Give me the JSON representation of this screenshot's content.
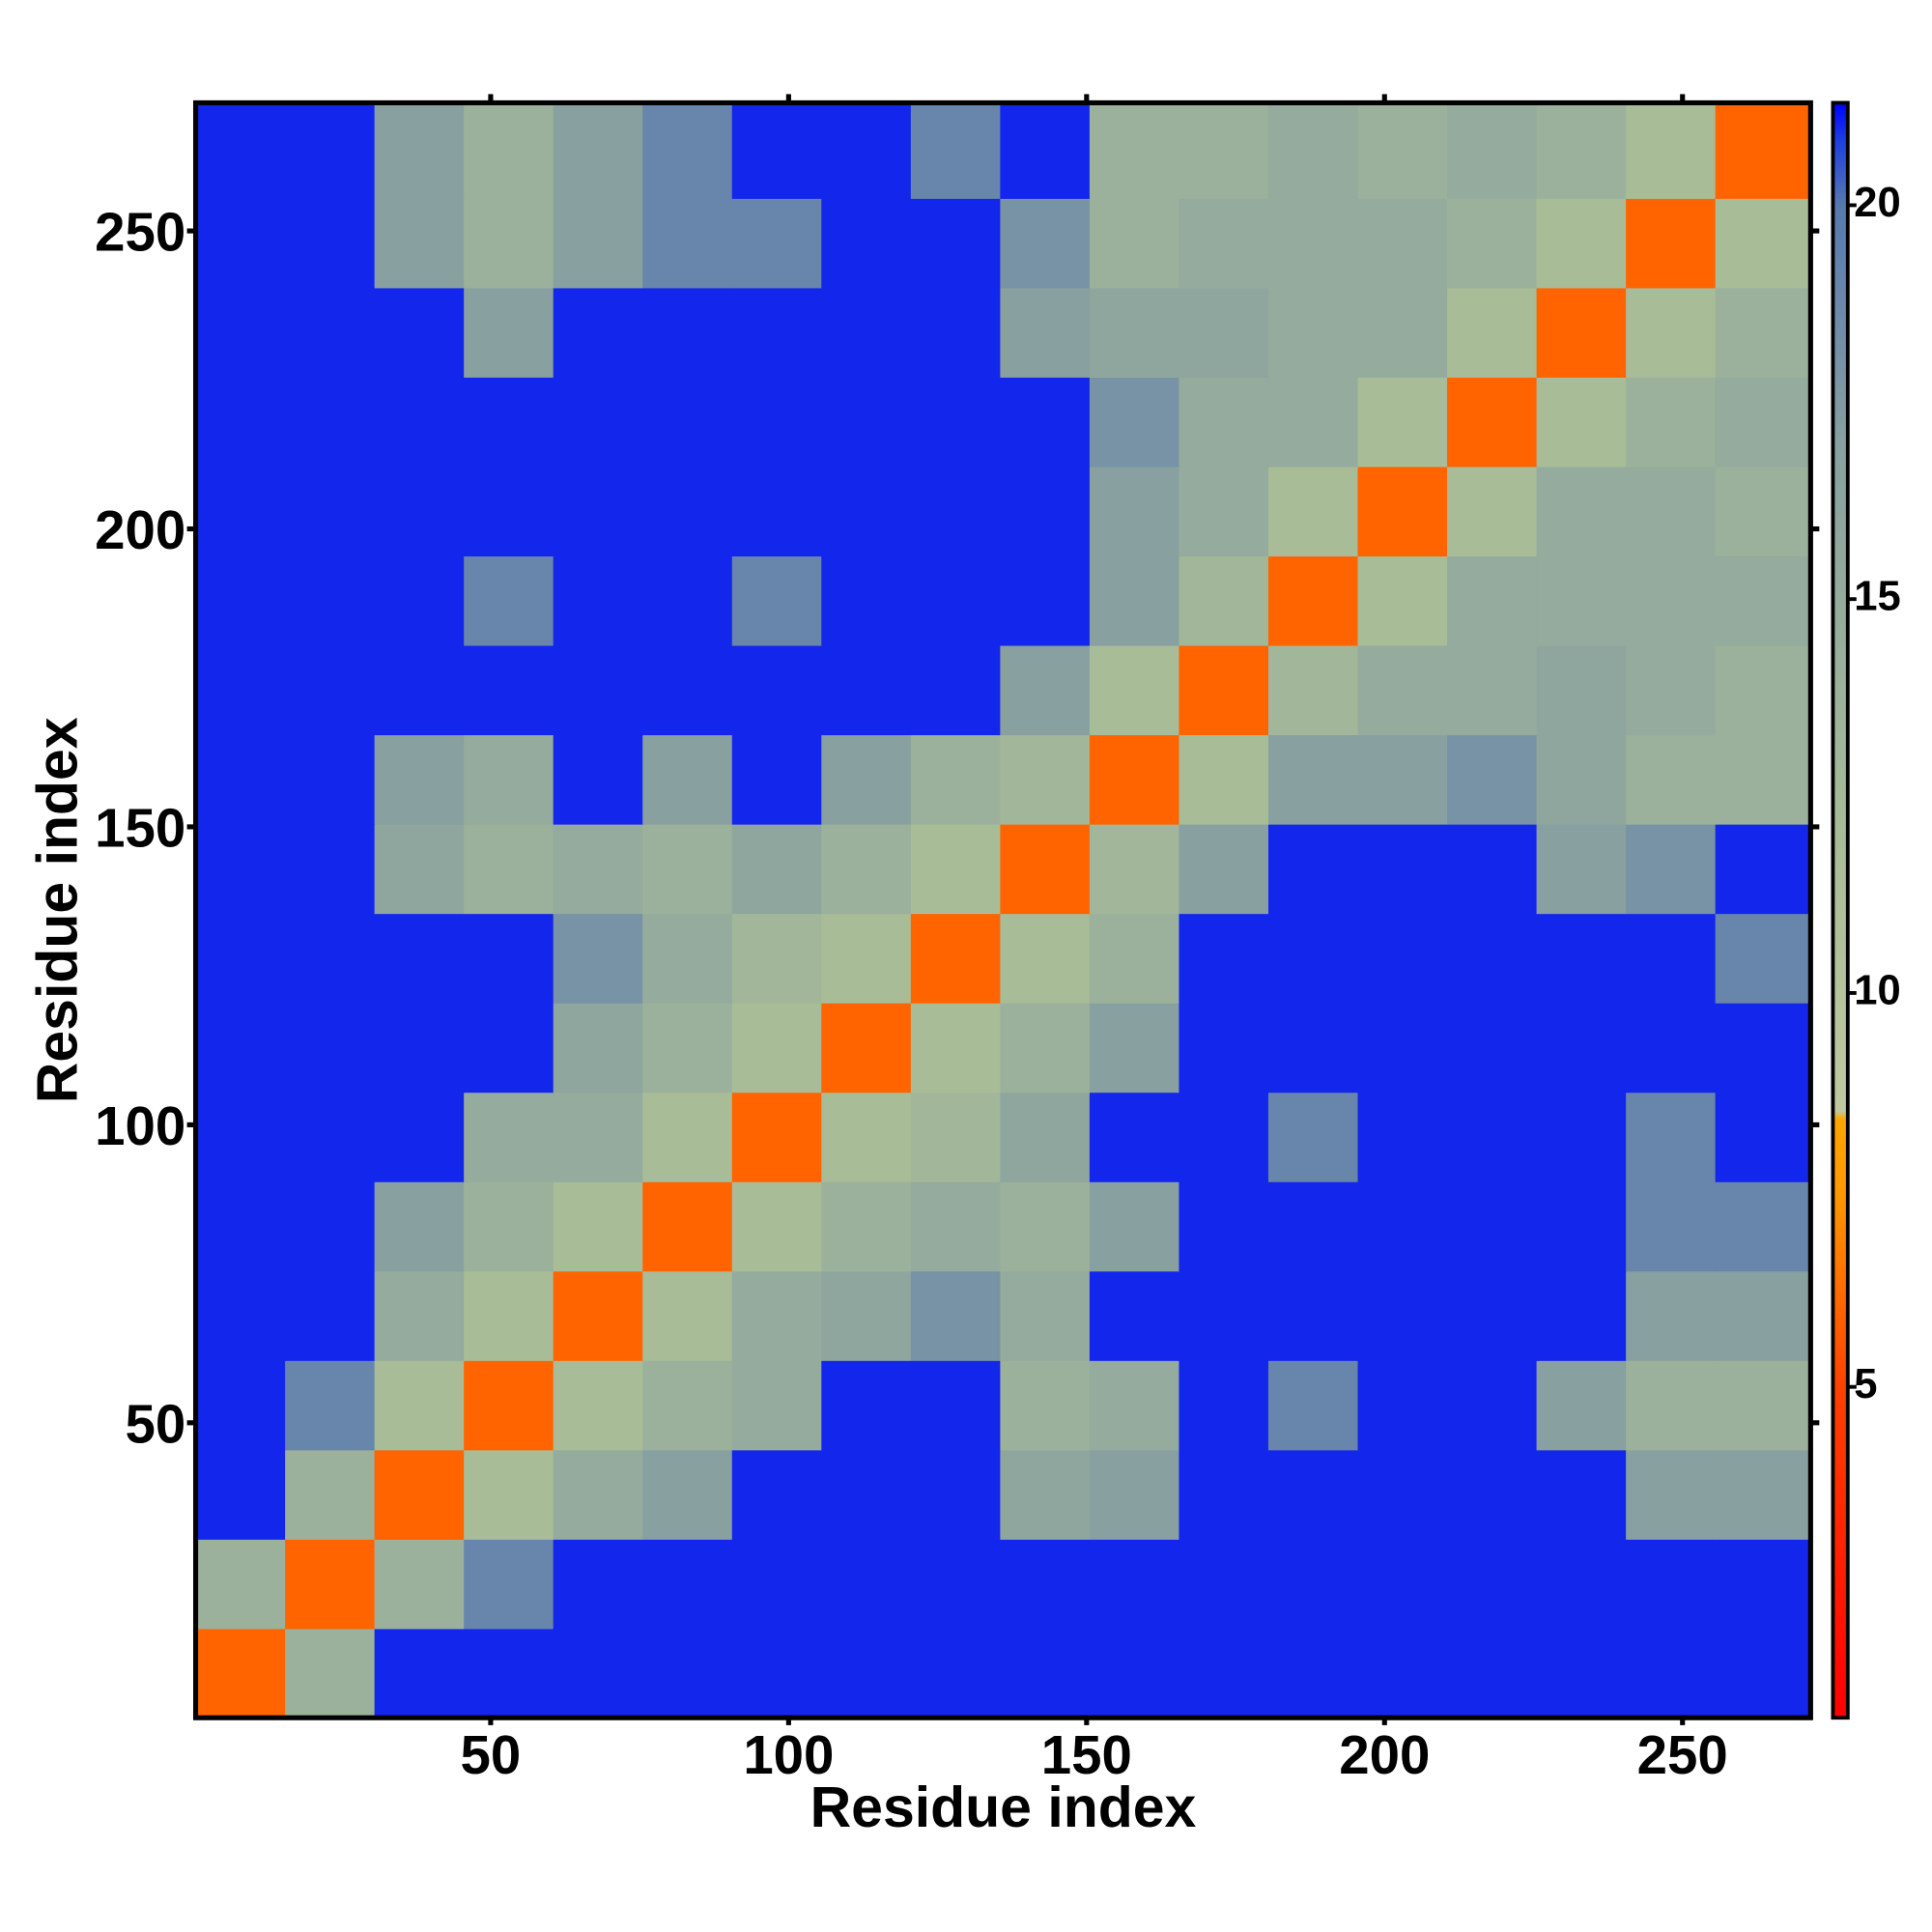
{
  "chart_data": {
    "type": "heatmap",
    "xlabel": "Residue index",
    "ylabel": "Residue index",
    "bins": [
      0.5,
      15.5,
      30.5,
      45.5,
      60.5,
      75.5,
      90.5,
      105.5,
      120.5,
      135.5,
      150.5,
      165.5,
      180.5,
      195.5,
      210.5,
      225.5,
      240.5,
      255.5,
      271.5
    ],
    "z": [
      [
        6,
        14,
        21,
        21,
        21,
        21,
        21,
        21,
        21,
        21,
        21,
        21,
        21,
        21,
        21,
        21,
        21,
        21
      ],
      [
        14,
        6,
        14,
        19,
        21,
        21,
        21,
        21,
        21,
        21,
        21,
        21,
        21,
        21,
        21,
        21,
        21,
        21
      ],
      [
        21,
        14,
        6,
        12,
        15,
        17,
        21,
        21,
        21,
        16,
        17,
        21,
        21,
        21,
        21,
        21,
        17,
        17
      ],
      [
        21,
        19,
        12,
        6,
        12,
        14,
        15,
        21,
        21,
        14,
        15,
        21,
        19,
        21,
        21,
        17,
        14,
        14
      ],
      [
        21,
        21,
        15,
        12,
        6,
        12,
        15,
        16,
        18,
        15,
        21,
        21,
        21,
        21,
        21,
        21,
        17,
        17
      ],
      [
        21,
        21,
        17,
        14,
        12,
        6,
        12,
        14,
        15,
        14,
        17,
        21,
        21,
        21,
        21,
        21,
        19,
        19
      ],
      [
        21,
        21,
        21,
        15,
        15,
        12,
        6,
        12,
        13,
        16,
        21,
        21,
        19,
        21,
        21,
        21,
        19,
        21
      ],
      [
        21,
        21,
        21,
        21,
        16,
        14,
        12,
        6,
        12,
        14,
        17,
        21,
        21,
        21,
        21,
        21,
        21,
        21
      ],
      [
        21,
        21,
        21,
        21,
        18,
        15,
        13,
        12,
        6,
        12,
        14,
        21,
        21,
        21,
        21,
        21,
        21,
        19
      ],
      [
        21,
        21,
        16,
        14,
        15,
        14,
        16,
        14,
        12,
        6,
        13,
        17,
        21,
        21,
        21,
        17,
        18,
        21
      ],
      [
        21,
        21,
        17,
        15,
        21,
        17,
        21,
        17,
        14,
        13,
        6,
        12,
        17,
        17,
        18,
        16,
        14,
        14
      ],
      [
        21,
        21,
        21,
        21,
        21,
        21,
        21,
        21,
        21,
        17,
        12,
        6,
        13,
        15,
        15,
        16,
        15,
        14
      ],
      [
        21,
        21,
        21,
        19,
        21,
        21,
        19,
        21,
        21,
        21,
        17,
        13,
        6,
        12,
        15,
        15,
        15,
        15
      ],
      [
        21,
        21,
        21,
        21,
        21,
        21,
        21,
        21,
        21,
        21,
        17,
        15,
        12,
        6,
        12,
        15,
        15,
        14
      ],
      [
        21,
        21,
        21,
        21,
        21,
        21,
        21,
        21,
        21,
        21,
        18,
        15,
        15,
        12,
        6,
        12,
        14,
        15
      ],
      [
        21,
        21,
        21,
        17,
        21,
        21,
        21,
        21,
        21,
        17,
        16,
        16,
        15,
        15,
        12,
        6,
        12,
        14
      ],
      [
        21,
        21,
        17,
        14,
        17,
        19,
        19,
        21,
        21,
        18,
        14,
        15,
        15,
        15,
        14,
        12,
        6,
        12
      ],
      [
        21,
        21,
        17,
        14,
        17,
        19,
        21,
        21,
        19,
        21,
        14,
        14,
        15,
        14,
        15,
        14,
        12,
        6
      ]
    ],
    "xlim": [
      0.5,
      271.5
    ],
    "ylim": [
      0.5,
      271.5
    ],
    "xticks": [
      50,
      100,
      150,
      200,
      250
    ],
    "yticks": [
      50,
      100,
      150,
      200,
      250
    ],
    "zlim": [
      0.8,
      21.3
    ],
    "zticks": [
      5,
      10,
      15,
      20
    ],
    "colorscale": [
      [
        0.8,
        "#ff0000"
      ],
      [
        5,
        "#ff4000"
      ],
      [
        7.5,
        "#ff9900"
      ],
      [
        8.4,
        "#ffa500"
      ],
      [
        8.5,
        "#c0c8a0"
      ],
      [
        12,
        "#a8bc98"
      ],
      [
        17,
        "#88a0a0"
      ],
      [
        20,
        "#5878b0"
      ],
      [
        20.8,
        "#2040e0"
      ],
      [
        21.3,
        "#0000ff"
      ]
    ]
  }
}
